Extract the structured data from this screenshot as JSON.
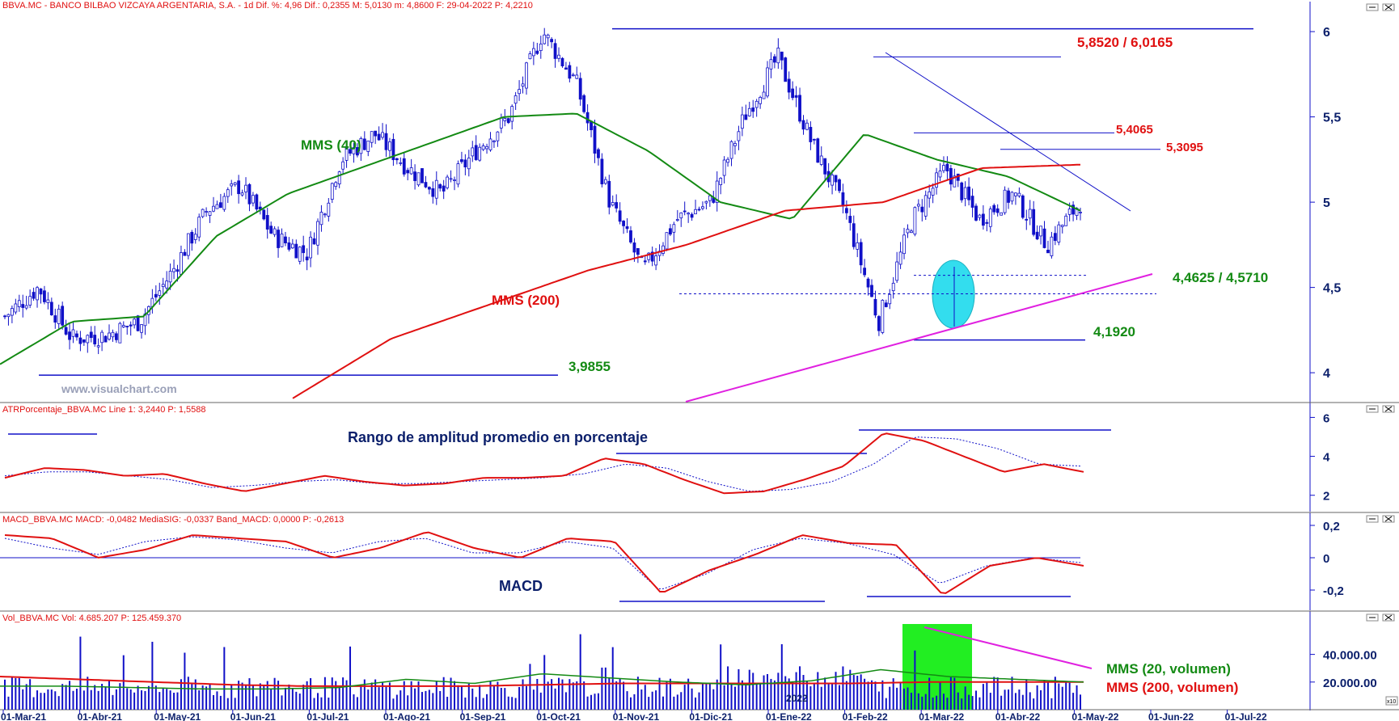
{
  "header": {
    "main": "BBVA.MC - BANCO BILBAO VIZCAYA ARGENTARIA, S.A. - 1d Dif. %: 4,96 Dif.: 0,2355 M: 5,0130 m: 4,8600 F: 29-04-2022 P: 4,2210",
    "atr": "ATRPorcentaje_BBVA.MC Line 1: 3,2440 P: 1,5588",
    "macd": "MACD_BBVA.MC MACD: -0,0482 MediaSIG: -0,0337 Band_MACD: 0,0000 P: -0,2613",
    "vol": "Vol_BBVA.MC Vol: 4.685.207 P: 125.459.370"
  },
  "watermark": "www.visualchart.com",
  "annotations": {
    "mms40": "MMS (40)",
    "mms200": "MMS (200)",
    "res_top": "5,8520 / 6,0165",
    "res_5406": "5,4065",
    "res_5309": "5,3095",
    "sup_446": "4,4625 / 4,5710",
    "sup_4192": "4,1920",
    "sup_398": "3,9855",
    "atr_title": "Rango de amplitud promedio en porcentaje",
    "macd_title": "MACD",
    "vol_mms20": "MMS (20, volumen)",
    "vol_mms200": "MMS (200, volumen)",
    "year_2022": "2022",
    "corner": "x10"
  },
  "colors": {
    "axis_text": "#0b1f6b",
    "price": "#1010c8",
    "mms40": "#138a13",
    "mms200": "#e01010",
    "trend": "#e020e0",
    "highlight_green": "#22ee22",
    "highlight_cyan": "#33ddee",
    "res_label": "#e01010",
    "sup_label": "#138a13"
  },
  "chart_data": {
    "type": "candlestick",
    "x_labels": [
      "01-Mar-21",
      "01-Abr-21",
      "01-May-21",
      "01-Jun-21",
      "01-Jul-21",
      "01-Ago-21",
      "01-Sep-21",
      "01-Oct-21",
      "01-Nov-21",
      "01-Dic-21",
      "01-Ene-22",
      "01-Feb-22",
      "01-Mar-22",
      "01-Abr-22",
      "01-May-22",
      "01-Jun-22",
      "01-Jul-22"
    ],
    "price_panel": {
      "y_ticks": [
        "6",
        "5,5",
        "5",
        "4,5",
        "4"
      ],
      "y_tick_values": [
        6,
        5.5,
        5,
        4.5,
        4
      ],
      "ylim": [
        3.83,
        6.1
      ],
      "close_anchors": [
        4.33,
        4.5,
        4.2,
        4.22,
        4.3,
        4.6,
        4.95,
        5.1,
        4.8,
        4.7,
        5.25,
        5.4,
        5.2,
        5.05,
        5.3,
        5.5,
        6.0,
        5.7,
        5.0,
        4.6,
        4.9,
        5.0,
        5.5,
        5.85,
        5.35,
        4.95,
        4.3,
        4.9,
        5.2,
        4.9,
        5.05,
        4.75,
        5.0
      ],
      "mms40": [
        4.05,
        4.3,
        4.33,
        4.8,
        5.05,
        5.2,
        5.35,
        5.5,
        5.52,
        5.3,
        5.0,
        4.9,
        5.4,
        5.25,
        5.15,
        4.95
      ],
      "mms200": [
        3.85,
        4.2,
        4.4,
        4.6,
        4.75,
        4.95,
        5.0,
        5.2,
        5.22
      ],
      "levels": [
        6.0165,
        5.852,
        5.4065,
        5.3095,
        4.571,
        4.4625,
        4.192,
        3.9855
      ]
    },
    "atr_panel": {
      "y_ticks": [
        "6",
        "4",
        "2"
      ],
      "y_tick_values": [
        6,
        4,
        2
      ],
      "ylim": [
        1.2,
        6.1
      ],
      "line": [
        2.9,
        3.4,
        3.3,
        3.0,
        3.1,
        2.6,
        2.2,
        2.6,
        3.0,
        2.7,
        2.5,
        2.6,
        2.9,
        2.9,
        3.0,
        3.9,
        3.6,
        2.8,
        2.1,
        2.2,
        2.8,
        3.5,
        5.2,
        4.8,
        4.0,
        3.2,
        3.6,
        3.2
      ],
      "signal": [
        3.0,
        3.2,
        3.2,
        3.0,
        2.8,
        2.4,
        2.5,
        2.7,
        2.8,
        2.6,
        2.6,
        2.7,
        2.8,
        2.9,
        3.1,
        3.6,
        3.4,
        2.7,
        2.2,
        2.3,
        2.7,
        3.6,
        5.0,
        4.9,
        4.4,
        3.6,
        3.5
      ]
    },
    "macd_panel": {
      "y_ticks": [
        "0,2",
        "0",
        "-0,2"
      ],
      "y_tick_values": [
        0.2,
        0,
        -0.2
      ],
      "ylim": [
        -0.32,
        0.2
      ],
      "macd": [
        0.14,
        0.12,
        0.0,
        0.05,
        0.14,
        0.12,
        0.1,
        0.0,
        0.06,
        0.16,
        0.06,
        0.0,
        0.12,
        0.1,
        -0.22,
        -0.08,
        0.02,
        0.14,
        0.09,
        0.08,
        -0.23,
        -0.05,
        0.0,
        -0.05
      ],
      "signal": [
        0.12,
        0.06,
        0.02,
        0.1,
        0.13,
        0.11,
        0.06,
        0.03,
        0.1,
        0.12,
        0.03,
        0.03,
        0.1,
        0.06,
        -0.2,
        -0.1,
        0.05,
        0.12,
        0.09,
        0.02,
        -0.16,
        -0.05,
        0.0,
        -0.03
      ]
    },
    "vol_panel": {
      "y_ticks": [
        "40.000.00",
        "20.000.00"
      ],
      "y_tick_values": [
        40,
        20
      ],
      "ylim": [
        0,
        62
      ],
      "mms20": [
        17,
        17,
        16,
        15,
        15,
        16,
        22,
        19,
        26,
        23,
        20,
        18,
        21,
        29,
        24,
        22,
        20
      ],
      "mms200": [
        24,
        22,
        20,
        18,
        17,
        17,
        17,
        18,
        19,
        19,
        19,
        19,
        20,
        20,
        20
      ]
    }
  }
}
